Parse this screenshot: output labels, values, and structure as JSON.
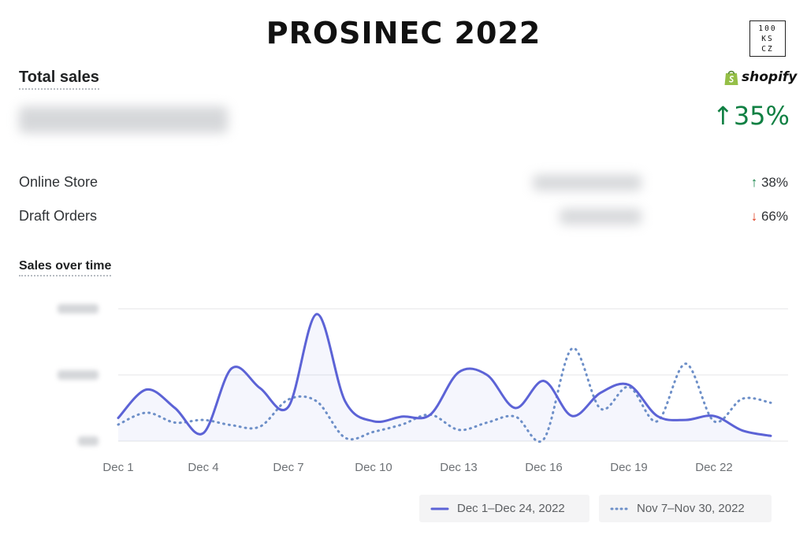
{
  "headline": "PROSINEC 2022",
  "logo": {
    "lines": [
      "100",
      "KS",
      "CZ"
    ]
  },
  "brand": {
    "icon": "shopify-bag-icon",
    "name": "shopify",
    "color": "#95bf47"
  },
  "summary": {
    "total_sales_label": "Total sales",
    "change_arrow": "↑",
    "change_pct": "35%",
    "rows": [
      {
        "label": "Online Store",
        "arrow": "↑",
        "direction": "up",
        "pct": "38%"
      },
      {
        "label": "Draft Orders",
        "arrow": "↓",
        "direction": "down",
        "pct": "66%"
      }
    ]
  },
  "chart_section_label": "Sales over time",
  "colors": {
    "current": "#5c63d6",
    "previous": "#6d8fc8",
    "positive": "#108043",
    "negative": "#de3618"
  },
  "chart_data": {
    "type": "line",
    "title": "Sales over time",
    "x": [
      "Dec 1",
      "Dec 2",
      "Dec 3",
      "Dec 4",
      "Dec 5",
      "Dec 6",
      "Dec 7",
      "Dec 8",
      "Dec 9",
      "Dec 10",
      "Dec 11",
      "Dec 12",
      "Dec 13",
      "Dec 14",
      "Dec 15",
      "Dec 16",
      "Dec 17",
      "Dec 18",
      "Dec 19",
      "Dec 20",
      "Dec 21",
      "Dec 22",
      "Dec 23",
      "Dec 24"
    ],
    "tick_labels": [
      "Dec 1",
      "Dec 4",
      "Dec 7",
      "Dec 10",
      "Dec 13",
      "Dec 16",
      "Dec 19",
      "Dec 22"
    ],
    "y_gridlines": 3,
    "y_tick_labels_obscured": true,
    "grid": true,
    "legend_position": "bottom-right",
    "series": [
      {
        "name": "Dec 1–Dec 24, 2022",
        "style": "solid",
        "values": [
          0.35,
          0.78,
          0.5,
          0.12,
          1.1,
          0.8,
          0.52,
          1.92,
          0.6,
          0.3,
          0.37,
          0.4,
          1.04,
          1.0,
          0.5,
          0.91,
          0.38,
          0.73,
          0.85,
          0.38,
          0.32,
          0.38,
          0.16,
          0.08
        ]
      },
      {
        "name": "Nov 7–Nov 30, 2022",
        "style": "dotted",
        "values": [
          0.25,
          0.43,
          0.28,
          0.32,
          0.24,
          0.22,
          0.63,
          0.6,
          0.05,
          0.14,
          0.25,
          0.4,
          0.17,
          0.28,
          0.37,
          0.03,
          1.4,
          0.49,
          0.82,
          0.3,
          1.17,
          0.3,
          0.64,
          0.58
        ]
      }
    ]
  }
}
